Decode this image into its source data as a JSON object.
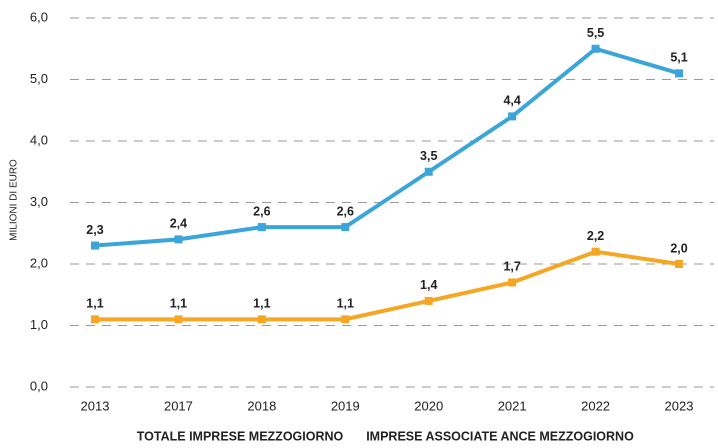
{
  "chart_data": {
    "type": "line",
    "y_axis_label": "MILIONI DI EURO",
    "categories": [
      "2013",
      "2017",
      "2018",
      "2019",
      "2020",
      "2021",
      "2022",
      "2023"
    ],
    "series": [
      {
        "name": "TOTALE IMPRESE MEZZOGIORNO",
        "color": "#3ba4d9",
        "values": [
          2.3,
          2.4,
          2.6,
          2.6,
          3.5,
          4.4,
          5.5,
          5.1
        ],
        "value_labels": [
          "2,3",
          "2,4",
          "2,6",
          "2,6",
          "3,5",
          "4,4",
          "5,5",
          "5,1"
        ]
      },
      {
        "name": "IMPRESE ASSOCIATE ANCE MEZZOGIORNO",
        "color": "#f5a623",
        "values": [
          1.1,
          1.1,
          1.1,
          1.1,
          1.4,
          1.7,
          2.2,
          2.0
        ],
        "value_labels": [
          "1,1",
          "1,1",
          "1,1",
          "1,1",
          "1,4",
          "1,7",
          "2,2",
          "2,0"
        ]
      }
    ],
    "ylim": [
      0,
      6
    ],
    "yticks": [
      {
        "value": 0,
        "label": "0,0"
      },
      {
        "value": 1,
        "label": "1,0"
      },
      {
        "value": 2,
        "label": "2,0"
      },
      {
        "value": 3,
        "label": "3,0"
      },
      {
        "value": 4,
        "label": "4,0"
      },
      {
        "value": 5,
        "label": "5,0"
      },
      {
        "value": 6,
        "label": "6,0"
      }
    ],
    "grid": true
  }
}
